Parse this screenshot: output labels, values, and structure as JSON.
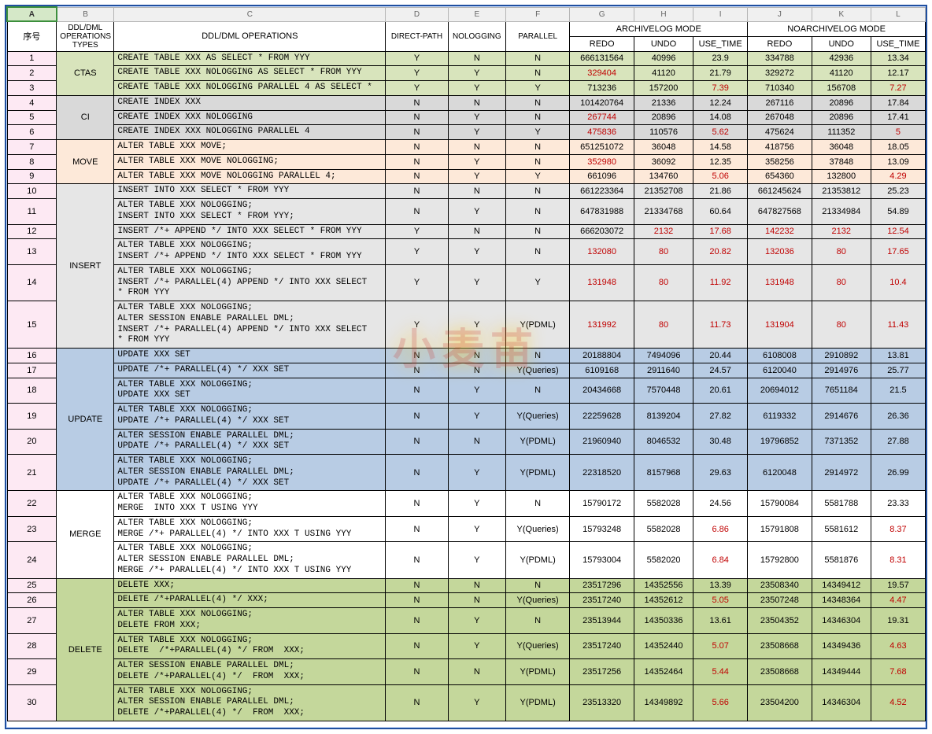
{
  "cols": [
    "A",
    "B",
    "C",
    "D",
    "E",
    "F",
    "G",
    "H",
    "I",
    "J",
    "K",
    "L"
  ],
  "widths": [
    60,
    70,
    330,
    76,
    70,
    78,
    78,
    72,
    66,
    78,
    72,
    66
  ],
  "header": {
    "seq": "序号",
    "types": "DDL/DML OPERATIONS TYPES",
    "ops": "DDL/DML OPERATIONS",
    "dp": "DIRECT-PATH",
    "nolog": "NOLOGGING",
    "par": "PARALLEL",
    "arch": "ARCHIVELOG MODE",
    "noarch": "NOARCHIVELOG MODE",
    "redo": "REDO",
    "undo": "UNDO",
    "ut": "USE_TIME"
  },
  "colors": {
    "ctas": "#d8e4bc",
    "ci": "#d9d9d9",
    "move": "#fde9d9",
    "ins": "#e6e6e6",
    "upd": "#b8cce4",
    "mrg": "#ffffff",
    "del": "#c4d79b",
    "hdr_merge": "#f2dcdb",
    "rownum": "#fde9f3",
    "red": "#c00000"
  },
  "groups": [
    {
      "type": "CTAS",
      "cls": "bg-ctas",
      "rows": [
        {
          "n": 1,
          "op": "CREATE TABLE XXX AS SELECT * FROM YYY",
          "dp": "Y",
          "nl": "N",
          "p": "N",
          "a": [
            "666131564",
            "40996",
            "23.9"
          ],
          "b": [
            "334788",
            "42936",
            "13.34"
          ],
          "red": {}
        },
        {
          "n": 2,
          "op": "CREATE TABLE XXX NOLOGGING AS SELECT * FROM YYY",
          "dp": "Y",
          "nl": "Y",
          "p": "N",
          "a": [
            "329404",
            "41120",
            "21.79"
          ],
          "b": [
            "329272",
            "41120",
            "12.17"
          ],
          "red": {
            "a0": true
          }
        },
        {
          "n": 3,
          "op": "CREATE TABLE XXX NOLOGGING PARALLEL 4 AS SELECT *",
          "dp": "Y",
          "nl": "Y",
          "p": "Y",
          "a": [
            "713236",
            "157200",
            "7.39"
          ],
          "b": [
            "710340",
            "156708",
            "7.27"
          ],
          "red": {
            "a2": true,
            "b2": true
          }
        }
      ]
    },
    {
      "type": "CI",
      "cls": "bg-ci",
      "rows": [
        {
          "n": 4,
          "op": "CREATE INDEX XXX",
          "dp": "N",
          "nl": "N",
          "p": "N",
          "a": [
            "101420764",
            "21336",
            "12.24"
          ],
          "b": [
            "267116",
            "20896",
            "17.84"
          ],
          "red": {}
        },
        {
          "n": 5,
          "op": "CREATE INDEX XXX NOLOGGING",
          "dp": "N",
          "nl": "Y",
          "p": "N",
          "a": [
            "267744",
            "20896",
            "14.08"
          ],
          "b": [
            "267048",
            "20896",
            "17.41"
          ],
          "red": {
            "a0": true
          }
        },
        {
          "n": 6,
          "op": "CREATE INDEX XXX NOLOGGING PARALLEL 4",
          "dp": "N",
          "nl": "Y",
          "p": "Y",
          "a": [
            "475836",
            "110576",
            "5.62"
          ],
          "b": [
            "475624",
            "111352",
            "5"
          ],
          "red": {
            "a0": true,
            "a2": true,
            "b2": true
          }
        }
      ]
    },
    {
      "type": "MOVE",
      "cls": "bg-move",
      "rows": [
        {
          "n": 7,
          "op": "ALTER TABLE XXX MOVE;",
          "dp": "N",
          "nl": "N",
          "p": "N",
          "a": [
            "651251072",
            "36048",
            "14.58"
          ],
          "b": [
            "418756",
            "36048",
            "18.05"
          ],
          "red": {}
        },
        {
          "n": 8,
          "op": "ALTER TABLE XXX MOVE NOLOGGING;",
          "dp": "N",
          "nl": "Y",
          "p": "N",
          "a": [
            "352980",
            "36092",
            "12.35"
          ],
          "b": [
            "358256",
            "37848",
            "13.09"
          ],
          "red": {
            "a0": true
          }
        },
        {
          "n": 9,
          "op": "ALTER TABLE XXX MOVE NOLOGGING PARALLEL 4;",
          "dp": "N",
          "nl": "Y",
          "p": "Y",
          "a": [
            "661096",
            "134760",
            "5.06"
          ],
          "b": [
            "654360",
            "132800",
            "4.29"
          ],
          "red": {
            "a2": true,
            "b2": true
          }
        }
      ]
    },
    {
      "type": "INSERT",
      "cls": "bg-ins",
      "rows": [
        {
          "n": 10,
          "op": "INSERT INTO XXX SELECT * FROM YYY",
          "dp": "N",
          "nl": "N",
          "p": "N",
          "a": [
            "661223364",
            "21352708",
            "21.86"
          ],
          "b": [
            "661245624",
            "21353812",
            "25.23"
          ],
          "red": {}
        },
        {
          "n": 11,
          "op": "ALTER TABLE XXX NOLOGGING;\nINSERT INTO XXX SELECT * FROM YYY;",
          "dp": "N",
          "nl": "Y",
          "p": "N",
          "a": [
            "647831988",
            "21334768",
            "60.64"
          ],
          "b": [
            "647827568",
            "21334984",
            "54.89"
          ],
          "red": {}
        },
        {
          "n": 12,
          "op": "INSERT /*+ APPEND */ INTO XXX SELECT * FROM YYY",
          "dp": "Y",
          "nl": "N",
          "p": "N",
          "a": [
            "666203072",
            "2132",
            "17.68"
          ],
          "b": [
            "142232",
            "2132",
            "12.54"
          ],
          "red": {
            "a1": true,
            "a2": true,
            "b0": true,
            "b1": true,
            "b2": true
          }
        },
        {
          "n": 13,
          "op": "ALTER TABLE XXX NOLOGGING;\nINSERT /*+ APPEND */ INTO XXX SELECT * FROM YYY",
          "dp": "Y",
          "nl": "Y",
          "p": "N",
          "a": [
            "132080",
            "80",
            "20.82"
          ],
          "b": [
            "132036",
            "80",
            "17.65"
          ],
          "red": {
            "a0": true,
            "a1": true,
            "a2": true,
            "b0": true,
            "b1": true,
            "b2": true
          }
        },
        {
          "n": 14,
          "op": "ALTER TABLE XXX NOLOGGING;\nINSERT /*+ PARALLEL(4) APPEND */ INTO XXX SELECT\n* FROM YYY",
          "dp": "Y",
          "nl": "Y",
          "p": "Y",
          "a": [
            "131948",
            "80",
            "11.92"
          ],
          "b": [
            "131948",
            "80",
            "10.4"
          ],
          "red": {
            "a0": true,
            "a1": true,
            "a2": true,
            "b0": true,
            "b1": true,
            "b2": true
          }
        },
        {
          "n": 15,
          "op": "ALTER TABLE XXX NOLOGGING;\nALTER SESSION ENABLE PARALLEL DML;\nINSERT /*+ PARALLEL(4) APPEND */ INTO XXX SELECT\n* FROM YYY",
          "dp": "Y",
          "nl": "Y",
          "p": "Y(PDML)",
          "a": [
            "131992",
            "80",
            "11.73"
          ],
          "b": [
            "131904",
            "80",
            "11.43"
          ],
          "red": {
            "a0": true,
            "a1": true,
            "a2": true,
            "b0": true,
            "b1": true,
            "b2": true
          }
        }
      ]
    },
    {
      "type": "UPDATE",
      "cls": "bg-upd",
      "rows": [
        {
          "n": 16,
          "op": "UPDATE XXX SET",
          "dp": "N",
          "nl": "N",
          "p": "N",
          "a": [
            "20188804",
            "7494096",
            "20.44"
          ],
          "b": [
            "6108008",
            "2910892",
            "13.81"
          ],
          "red": {}
        },
        {
          "n": 17,
          "op": "UPDATE /*+ PARALLEL(4) */ XXX SET",
          "dp": "N",
          "nl": "N",
          "p": "Y(Queries)",
          "a": [
            "6109168",
            "2911640",
            "24.57"
          ],
          "b": [
            "6120040",
            "2914976",
            "25.77"
          ],
          "red": {}
        },
        {
          "n": 18,
          "op": "ALTER TABLE XXX NOLOGGING;\nUPDATE XXX SET",
          "dp": "N",
          "nl": "Y",
          "p": "N",
          "a": [
            "20434668",
            "7570448",
            "20.61"
          ],
          "b": [
            "20694012",
            "7651184",
            "21.5"
          ],
          "red": {}
        },
        {
          "n": 19,
          "op": "ALTER TABLE XXX NOLOGGING;\nUPDATE /*+ PARALLEL(4) */ XXX SET",
          "dp": "N",
          "nl": "Y",
          "p": "Y(Queries)",
          "a": [
            "22259628",
            "8139204",
            "27.82"
          ],
          "b": [
            "6119332",
            "2914676",
            "26.36"
          ],
          "red": {}
        },
        {
          "n": 20,
          "op": "ALTER SESSION ENABLE PARALLEL DML;\nUPDATE /*+ PARALLEL(4) */ XXX SET",
          "dp": "N",
          "nl": "N",
          "p": "Y(PDML)",
          "a": [
            "21960940",
            "8046532",
            "30.48"
          ],
          "b": [
            "19796852",
            "7371352",
            "27.88"
          ],
          "red": {}
        },
        {
          "n": 21,
          "op": "ALTER TABLE XXX NOLOGGING;\nALTER SESSION ENABLE PARALLEL DML;\nUPDATE /*+ PARALLEL(4) */ XXX SET",
          "dp": "N",
          "nl": "Y",
          "p": "Y(PDML)",
          "a": [
            "22318520",
            "8157968",
            "29.63"
          ],
          "b": [
            "6120048",
            "2914972",
            "26.99"
          ],
          "red": {}
        }
      ]
    },
    {
      "type": "MERGE",
      "cls": "bg-mrg",
      "rows": [
        {
          "n": 22,
          "op": "ALTER TABLE XXX NOLOGGING;\nMERGE  INTO XXX T USING YYY",
          "dp": "N",
          "nl": "Y",
          "p": "N",
          "a": [
            "15790172",
            "5582028",
            "24.56"
          ],
          "b": [
            "15790084",
            "5581788",
            "23.33"
          ],
          "red": {}
        },
        {
          "n": 23,
          "op": "ALTER TABLE XXX NOLOGGING;\nMERGE /*+ PARALLEL(4) */ INTO XXX T USING YYY",
          "dp": "N",
          "nl": "Y",
          "p": "Y(Queries)",
          "a": [
            "15793248",
            "5582028",
            "6.86"
          ],
          "b": [
            "15791808",
            "5581612",
            "8.37"
          ],
          "red": {
            "a2": true,
            "b2": true
          }
        },
        {
          "n": 24,
          "op": "ALTER TABLE XXX NOLOGGING;\nALTER SESSION ENABLE PARALLEL DML;\nMERGE /*+ PARALLEL(4) */ INTO XXX T USING YYY",
          "dp": "N",
          "nl": "Y",
          "p": "Y(PDML)",
          "a": [
            "15793004",
            "5582020",
            "6.84"
          ],
          "b": [
            "15792800",
            "5581876",
            "8.31"
          ],
          "red": {
            "a2": true,
            "b2": true
          }
        }
      ]
    },
    {
      "type": "DELETE",
      "cls": "bg-del",
      "rows": [
        {
          "n": 25,
          "op": "DELETE XXX;",
          "dp": "N",
          "nl": "N",
          "p": "N",
          "a": [
            "23517296",
            "14352556",
            "13.39"
          ],
          "b": [
            "23508340",
            "14349412",
            "19.57"
          ],
          "red": {}
        },
        {
          "n": 26,
          "op": "DELETE /*+PARALLEL(4) */ XXX;",
          "dp": "N",
          "nl": "N",
          "p": "Y(Queries)",
          "a": [
            "23517240",
            "14352612",
            "5.05"
          ],
          "b": [
            "23507248",
            "14348364",
            "4.47"
          ],
          "red": {
            "a2": true,
            "b2": true
          }
        },
        {
          "n": 27,
          "op": "ALTER TABLE XXX NOLOGGING;\nDELETE FROM XXX;",
          "dp": "N",
          "nl": "Y",
          "p": "N",
          "a": [
            "23513944",
            "14350336",
            "13.61"
          ],
          "b": [
            "23504352",
            "14346304",
            "19.31"
          ],
          "red": {}
        },
        {
          "n": 28,
          "op": "ALTER TABLE XXX NOLOGGING;\nDELETE  /*+PARALLEL(4) */ FROM  XXX;",
          "dp": "N",
          "nl": "Y",
          "p": "Y(Queries)",
          "a": [
            "23517240",
            "14352440",
            "5.07"
          ],
          "b": [
            "23508668",
            "14349436",
            "4.63"
          ],
          "red": {
            "a2": true,
            "b2": true
          }
        },
        {
          "n": 29,
          "op": "ALTER SESSION ENABLE PARALLEL DML;\nDELETE /*+PARALLEL(4) */  FROM  XXX;",
          "dp": "N",
          "nl": "N",
          "p": "Y(PDML)",
          "a": [
            "23517256",
            "14352464",
            "5.44"
          ],
          "b": [
            "23508668",
            "14349444",
            "7.68"
          ],
          "red": {
            "a2": true,
            "b2": true
          }
        },
        {
          "n": 30,
          "op": "ALTER TABLE XXX NOLOGGING;\nALTER SESSION ENABLE PARALLEL DML;\nDELETE /*+PARALLEL(4) */  FROM  XXX;",
          "dp": "N",
          "nl": "Y",
          "p": "Y(PDML)",
          "a": [
            "23513320",
            "14349892",
            "5.66"
          ],
          "b": [
            "23504200",
            "14346304",
            "4.52"
          ],
          "red": {
            "a2": true,
            "b2": true
          }
        }
      ]
    }
  ],
  "watermark": "小麦苗"
}
